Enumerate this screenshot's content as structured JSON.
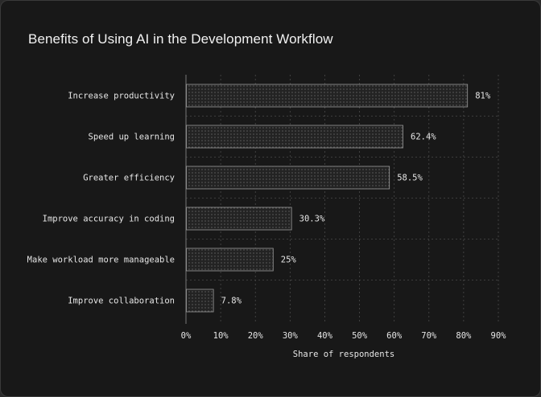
{
  "chart_data": {
    "type": "bar",
    "orientation": "horizontal",
    "title": "Benefits of Using AI in the Development Workflow",
    "xlabel": "Share of respondents",
    "ylabel": "",
    "categories": [
      "Increase productivity",
      "Speed up learning",
      "Greater efficiency",
      "Improve accuracy in coding",
      "Make workload more manageable",
      "Improve collaboration"
    ],
    "values": [
      81,
      62.4,
      58.5,
      30.3,
      25,
      7.8
    ],
    "value_labels": [
      "81%",
      "62.4%",
      "58.5%",
      "30.3%",
      "25%",
      "7.8%"
    ],
    "xlim": [
      0,
      90
    ],
    "xticks": [
      0,
      10,
      20,
      30,
      40,
      50,
      60,
      70,
      80,
      90
    ],
    "xtick_labels": [
      "0%",
      "10%",
      "20%",
      "30%",
      "40%",
      "50%",
      "60%",
      "70%",
      "80%",
      "90%"
    ],
    "grid": true,
    "colors": {
      "background": "#181818",
      "bar_fill": "#232323",
      "bar_dots": "#8a8a8a",
      "bar_border": "#9a9a9a",
      "grid": "#4a4a4a",
      "text": "#e6e6e6"
    }
  }
}
